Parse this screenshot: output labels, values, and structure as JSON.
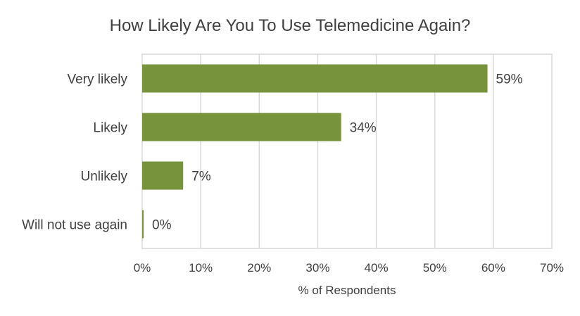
{
  "chart_data": {
    "type": "bar",
    "orientation": "horizontal",
    "title": "How Likely Are You To Use Telemedicine Again?",
    "categories": [
      "Very likely",
      "Likely",
      "Unlikely",
      "Will not use again"
    ],
    "values": [
      59,
      34,
      7,
      0
    ],
    "value_labels": [
      "59%",
      "34%",
      "7%",
      "0%"
    ],
    "xlabel": "% of Respondents",
    "ylabel": "",
    "xlim": [
      0,
      70
    ],
    "x_ticks": [
      0,
      10,
      20,
      30,
      40,
      50,
      60,
      70
    ],
    "x_tick_labels": [
      "0%",
      "10%",
      "20%",
      "30%",
      "40%",
      "50%",
      "60%",
      "70%"
    ],
    "grid": true,
    "legend": "none",
    "bar_color": "#77933c"
  }
}
